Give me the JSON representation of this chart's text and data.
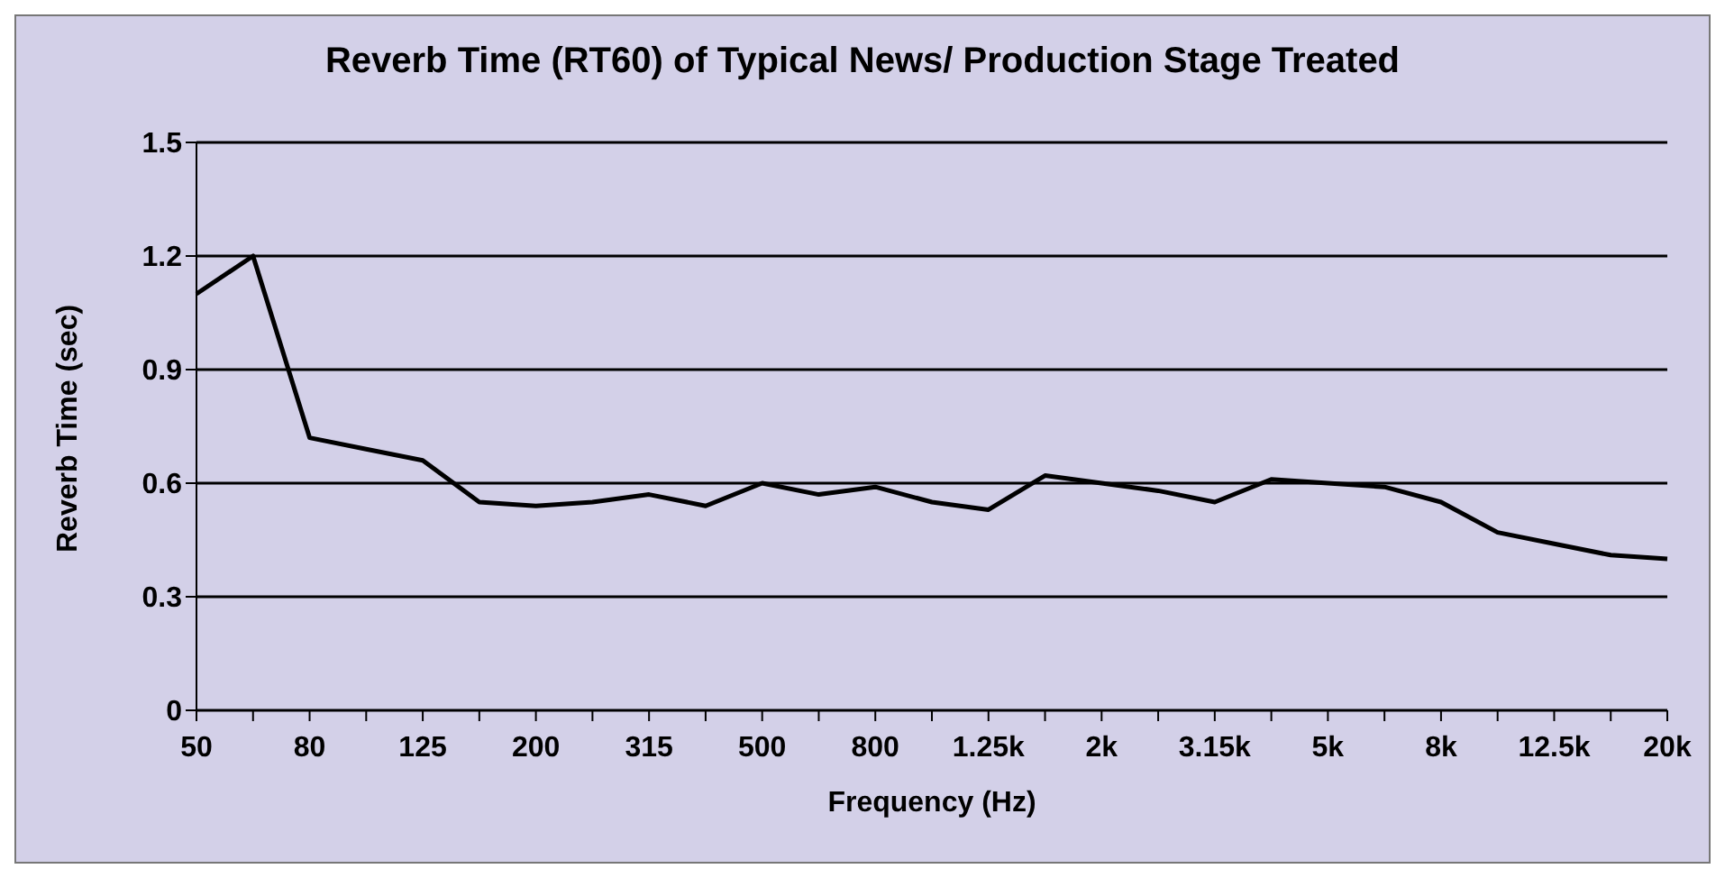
{
  "chart_data": {
    "type": "line",
    "title": "Reverb Time (RT60) of Typical News/ Production Stage Treated",
    "xlabel": "Frequency (Hz)",
    "ylabel": "Reverb Time (sec)",
    "categories": [
      "50",
      null,
      "80",
      null,
      "125",
      null,
      "200",
      null,
      "315",
      null,
      "500",
      null,
      "800",
      null,
      "1.25k",
      null,
      "2k",
      null,
      "3.15k",
      null,
      "5k",
      null,
      "8k",
      null,
      "12.5k",
      null,
      "20k"
    ],
    "series": [
      {
        "color": "#000000",
        "values": [
          1.1,
          1.2,
          0.72,
          0.69,
          0.66,
          0.55,
          0.54,
          0.55,
          0.57,
          0.54,
          0.6,
          0.57,
          0.59,
          0.55,
          0.53,
          0.62,
          0.6,
          0.58,
          0.55,
          0.61,
          0.6,
          0.59,
          0.55,
          0.47,
          0.44,
          0.41,
          0.4
        ]
      }
    ],
    "ylim": [
      0,
      1.5
    ],
    "yticks": [
      0,
      0.3,
      0.6,
      0.9,
      1.2,
      1.5
    ],
    "grid": "y",
    "legend": false,
    "marker": "none",
    "line_style": "solid"
  }
}
